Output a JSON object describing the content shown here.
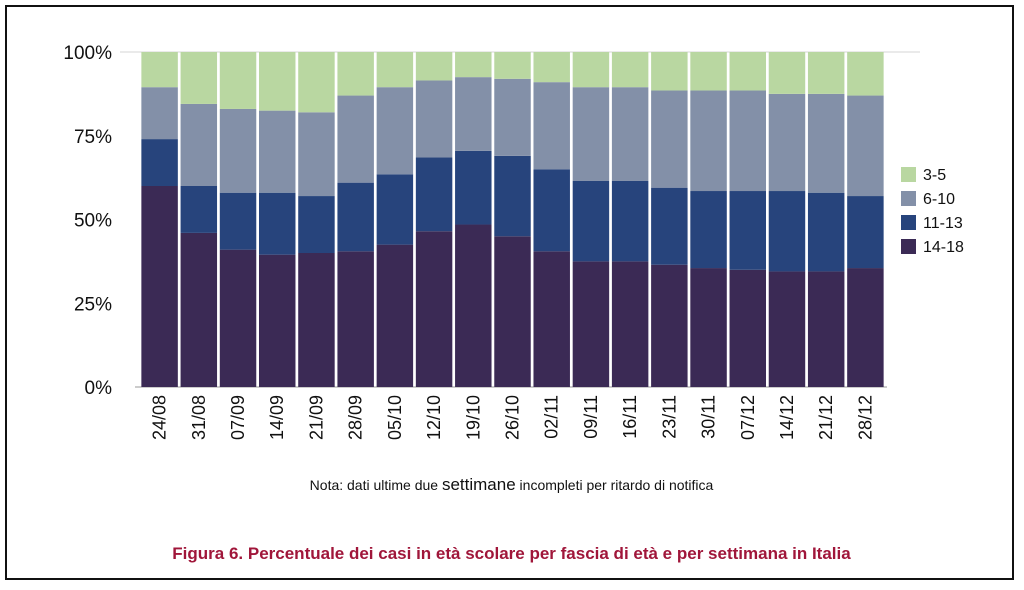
{
  "chart_data": {
    "type": "bar",
    "stacked": true,
    "categories": [
      "24/08",
      "31/08",
      "07/09",
      "14/09",
      "21/09",
      "28/09",
      "05/10",
      "12/10",
      "19/10",
      "26/10",
      "02/11",
      "09/11",
      "16/11",
      "23/11",
      "30/11",
      "07/12",
      "14/12",
      "21/12",
      "28/12"
    ],
    "series": [
      {
        "name": "14-18",
        "color": "#3b2a55",
        "values": [
          60,
          46,
          41,
          39.5,
          40,
          40.5,
          42.5,
          46.5,
          48.5,
          45,
          40.5,
          37.5,
          37.5,
          36.5,
          35.5,
          35,
          34.5,
          34.5,
          35.5
        ]
      },
      {
        "name": "11-13",
        "color": "#27447c",
        "values": [
          14,
          14,
          17,
          18.5,
          17,
          20.5,
          21,
          22,
          22,
          24,
          24.5,
          24,
          24,
          23,
          23,
          23.5,
          24,
          23.5,
          21.5
        ]
      },
      {
        "name": "6-10",
        "color": "#8390a8",
        "values": [
          15.5,
          24.5,
          25,
          24.5,
          25,
          26,
          26,
          23,
          22,
          23,
          26,
          28,
          28,
          29,
          30,
          30,
          29,
          29.5,
          30
        ]
      },
      {
        "name": "3-5",
        "color": "#b9d7a1",
        "values": [
          10.5,
          15.5,
          17,
          17.5,
          18,
          13,
          10.5,
          8.5,
          7.5,
          8,
          9,
          10.5,
          10.5,
          11.5,
          11.5,
          11.5,
          12.5,
          12.5,
          13
        ]
      }
    ],
    "legend_order": [
      "3-5",
      "6-10",
      "11-13",
      "14-18"
    ],
    "ylim": [
      0,
      100
    ],
    "yticks": [
      "0%",
      "25%",
      "50%",
      "75%",
      "100%"
    ],
    "ytick_values": [
      0,
      25,
      50,
      75,
      100
    ],
    "legend_position": "right",
    "grid": false
  },
  "note": {
    "prefix": "Nota: dati ultime due ",
    "emphasis": "settimane",
    "suffix": " incompleti per ritardo di notifica"
  },
  "caption": "Figura 6. Percentuale dei casi in età scolare per fascia di età e per settimana in Italia"
}
